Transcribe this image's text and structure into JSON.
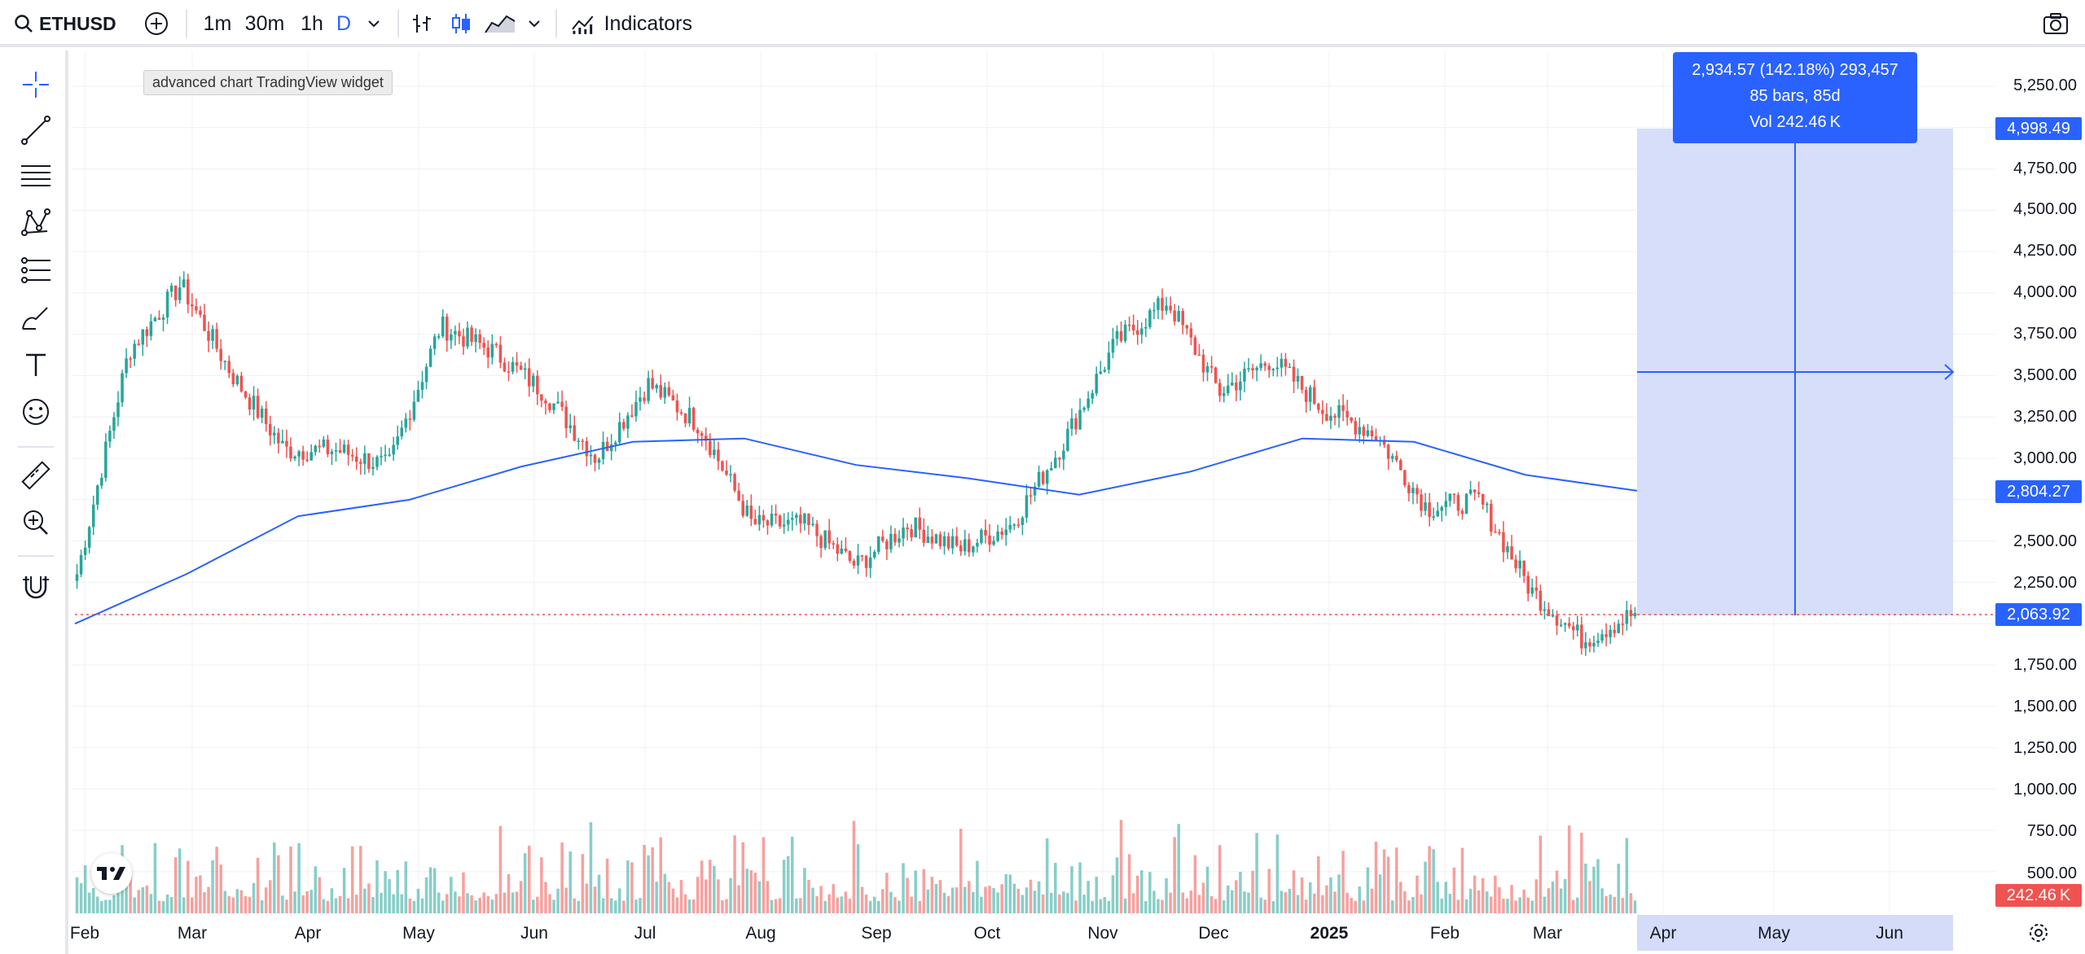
{
  "toolbar": {
    "symbol": "ETHUSD",
    "intervals": [
      "1m",
      "30m",
      "1h",
      "D"
    ],
    "active_interval": "D",
    "indicators_label": "Indicators"
  },
  "chart_tooltip": "advanced chart TradingView widget",
  "measure": {
    "line1": "2,934.57 (142.18%) 293,457",
    "line2": "85 bars, 85d",
    "line3": "Vol 242.46 K"
  },
  "price_axis": {
    "ticks": [
      "5,250.00",
      "4,750.00",
      "4,500.00",
      "4,250.00",
      "4,000.00",
      "3,750.00",
      "3,500.00",
      "3,250.00",
      "3,000.00",
      "2,500.00",
      "2,250.00",
      "1,750.00",
      "1,500.00",
      "1,250.00",
      "1,000.00",
      "750.00",
      "500.00"
    ],
    "badge_top": "4,998.49",
    "badge_ma": "2,804.27",
    "badge_last": "2,063.92",
    "badge_vol": "242.46 K"
  },
  "time_axis": {
    "labels": [
      "Feb",
      "Mar",
      "Apr",
      "May",
      "Jun",
      "Jul",
      "Aug",
      "Sep",
      "Oct",
      "Nov",
      "Dec",
      "2025",
      "Feb",
      "Mar",
      "Apr",
      "May",
      "Jun"
    ]
  },
  "colors": {
    "up": "#26a69a",
    "down": "#ef5350",
    "ma": "#2962ff",
    "measure_fill": "#d4dcfa",
    "grid": "#f0f1f3"
  },
  "chart_data": {
    "type": "candlestick",
    "symbol": "ETHUSD",
    "interval": "D",
    "ylim": [
      1500,
      5400
    ],
    "close_waypoints": [
      {
        "x": "Feb 2024",
        "y": 2300
      },
      {
        "x": "Mar 2024",
        "y": 3650
      },
      {
        "x": "Mar 2024",
        "y": 4050
      },
      {
        "x": "Apr 2024",
        "y": 3500
      },
      {
        "x": "Apr 2024",
        "y": 3050
      },
      {
        "x": "May 2024",
        "y": 3050
      },
      {
        "x": "May 2024",
        "y": 2950
      },
      {
        "x": "Jun 2024",
        "y": 3800
      },
      {
        "x": "Jun 2024",
        "y": 3650
      },
      {
        "x": "Jul 2024",
        "y": 3400
      },
      {
        "x": "Jul 2024",
        "y": 3000
      },
      {
        "x": "Jul 2024",
        "y": 3450
      },
      {
        "x": "Aug 2024",
        "y": 3200
      },
      {
        "x": "Aug 2024",
        "y": 2600
      },
      {
        "x": "Sep 2024",
        "y": 2600
      },
      {
        "x": "Sep 2024",
        "y": 2350
      },
      {
        "x": "Oct 2024",
        "y": 2600
      },
      {
        "x": "Oct 2024",
        "y": 2450
      },
      {
        "x": "Nov 2024",
        "y": 2600
      },
      {
        "x": "Nov 2024",
        "y": 3100
      },
      {
        "x": "Dec 2024",
        "y": 3700
      },
      {
        "x": "Dec 2024",
        "y": 3950
      },
      {
        "x": "Dec 2024",
        "y": 3400
      },
      {
        "x": "Jan 2025",
        "y": 3600
      },
      {
        "x": "Jan 2025",
        "y": 3300
      },
      {
        "x": "Feb 2025",
        "y": 3150
      },
      {
        "x": "Feb 2025",
        "y": 2700
      },
      {
        "x": "Mar 2025",
        "y": 2750
      },
      {
        "x": "Mar 2025",
        "y": 2200
      },
      {
        "x": "Mar 2025",
        "y": 1900
      },
      {
        "x": "Mar 2025",
        "y": 2064
      }
    ],
    "moving_average": [
      {
        "x": "Feb 2024",
        "y": 2000
      },
      {
        "x": "Mar 2024",
        "y": 2300
      },
      {
        "x": "Apr 2024",
        "y": 2650
      },
      {
        "x": "May 2024",
        "y": 2750
      },
      {
        "x": "Jun 2024",
        "y": 2950
      },
      {
        "x": "Jul 2024",
        "y": 3100
      },
      {
        "x": "Aug 2024",
        "y": 3120
      },
      {
        "x": "Sep 2024",
        "y": 2960
      },
      {
        "x": "Oct 2024",
        "y": 2880
      },
      {
        "x": "Nov 2024",
        "y": 2780
      },
      {
        "x": "Dec 2024",
        "y": 2920
      },
      {
        "x": "Jan 2025",
        "y": 3120
      },
      {
        "x": "Feb 2025",
        "y": 3100
      },
      {
        "x": "Mar 2025",
        "y": 2900
      },
      {
        "x": "Mar 2025",
        "y": 2804
      }
    ],
    "last_price": 2063.92
  }
}
